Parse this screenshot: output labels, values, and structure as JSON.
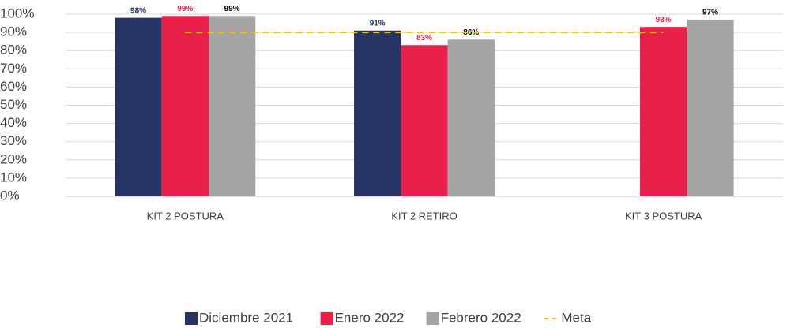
{
  "chart_data": {
    "type": "bar",
    "categories": [
      "KIT 2 POSTURA",
      "KIT 2 RETIRO",
      "KIT 3 POSTURA"
    ],
    "series": [
      {
        "name": "Diciembre 2021",
        "color": "#253464",
        "label_color": "#253464",
        "values": [
          98,
          91,
          null
        ],
        "value_labels": [
          "98%",
          "91%",
          null
        ]
      },
      {
        "name": "Enero 2022",
        "color": "#e8204a",
        "label_color": "#e8204a",
        "values": [
          99,
          83,
          93
        ],
        "value_labels": [
          "99%",
          "83%",
          "93%"
        ]
      },
      {
        "name": "Febrero 2022",
        "color": "#a5a5a5",
        "label_color": "#000000",
        "values": [
          99,
          86,
          97
        ],
        "value_labels": [
          "99%",
          "86%",
          "97%"
        ]
      },
      {
        "name": "Meta",
        "type": "line",
        "dashed": true,
        "color": "#ffc000",
        "values": [
          90,
          90,
          90
        ]
      }
    ],
    "ylim": [
      0,
      100
    ],
    "yticks": [
      {
        "value": 0,
        "label": "0%"
      },
      {
        "value": 10,
        "label": "10%"
      },
      {
        "value": 20,
        "label": "20%"
      },
      {
        "value": 30,
        "label": "30%"
      },
      {
        "value": 40,
        "label": "40%"
      },
      {
        "value": 50,
        "label": "50%"
      },
      {
        "value": 60,
        "label": "60%"
      },
      {
        "value": 70,
        "label": "70%"
      },
      {
        "value": 80,
        "label": "80%"
      },
      {
        "value": 90,
        "label": "90%"
      },
      {
        "value": 100,
        "label": "100%"
      }
    ],
    "grid": true,
    "legend": "bottom"
  }
}
